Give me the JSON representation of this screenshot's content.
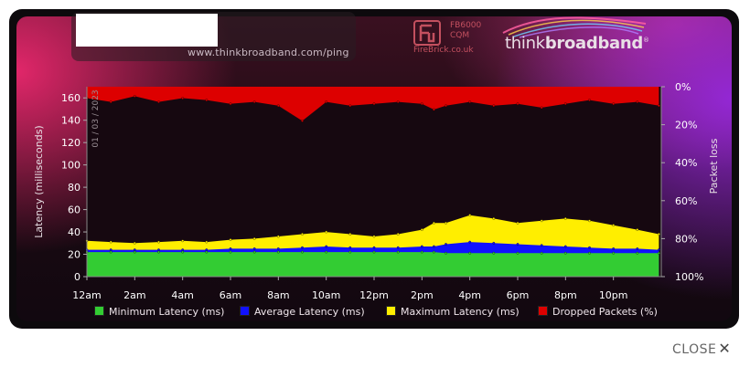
{
  "header": {
    "url": "www.thinkbroadband.com/ping",
    "sponsor_model_line1": "FB6000",
    "sponsor_model_line2": "CQM",
    "sponsor_name": "FireBrick.co.uk",
    "brand_regular": "think",
    "brand_bold": "broadband",
    "brand_mark": "®"
  },
  "date_label": "01 / 03 / 2023",
  "legend": [
    {
      "label": "Minimum Latency (ms)",
      "color": "#33cc33"
    },
    {
      "label": "Average Latency (ms)",
      "color": "#1111ff"
    },
    {
      "label": "Maximum Latency (ms)",
      "color": "#ffee00"
    },
    {
      "label": "Dropped Packets (%)",
      "color": "#dd0000"
    }
  ],
  "close_label": "CLOSE",
  "colors": {
    "plot_bg": "#160810",
    "axis_text": "#e8e0e5",
    "tick_text": "#ffffff"
  },
  "chart_data": {
    "type": "area",
    "title": "",
    "xlabel": "",
    "ylabel": "Latency (milliseconds)",
    "y2label": "Packet loss",
    "xlim": [
      0,
      24
    ],
    "ylim": [
      0,
      170
    ],
    "y2lim": [
      0,
      100
    ],
    "y2_inverted": true,
    "x_ticks": [
      "12am",
      "2am",
      "4am",
      "6am",
      "8am",
      "10am",
      "12pm",
      "2pm",
      "4pm",
      "6pm",
      "8pm",
      "10pm"
    ],
    "y_ticks": [
      0,
      20,
      40,
      60,
      80,
      100,
      120,
      140,
      160
    ],
    "y2_ticks": [
      "0%",
      "20%",
      "40%",
      "60%",
      "80%",
      "100%"
    ],
    "grid": false,
    "legend_position": "bottom",
    "x": [
      0,
      1,
      2,
      3,
      4,
      5,
      6,
      7,
      8,
      9,
      10,
      11,
      12,
      13,
      14,
      14.5,
      15,
      16,
      17,
      18,
      19,
      20,
      21,
      22,
      23,
      23.9
    ],
    "series": [
      {
        "name": "Minimum Latency (ms)",
        "axis": "left",
        "values": [
          22,
          22,
          22,
          22,
          22,
          22,
          22,
          22,
          22,
          22,
          22,
          22,
          22,
          22,
          22,
          22,
          21,
          21,
          21,
          21,
          21,
          21,
          21,
          21,
          21,
          21
        ]
      },
      {
        "name": "Average Latency (ms)",
        "axis": "left",
        "values": [
          24,
          24,
          24,
          24,
          24,
          24,
          25,
          25,
          25,
          26,
          27,
          26,
          26,
          26,
          27,
          27,
          29,
          31,
          30,
          29,
          28,
          27,
          26,
          25,
          25,
          24
        ]
      },
      {
        "name": "Maximum Latency (ms)",
        "axis": "left",
        "values": [
          32,
          31,
          30,
          31,
          32,
          31,
          33,
          34,
          36,
          38,
          40,
          38,
          36,
          38,
          42,
          48,
          48,
          55,
          52,
          48,
          50,
          52,
          50,
          46,
          42,
          38
        ]
      },
      {
        "name": "Dropped Packets (%)",
        "axis": "right",
        "values": [
          6,
          8,
          5,
          8,
          6,
          7,
          9,
          8,
          10,
          18,
          8,
          10,
          9,
          8,
          9,
          12,
          10,
          8,
          10,
          9,
          11,
          9,
          7,
          9,
          8,
          10
        ]
      }
    ]
  }
}
